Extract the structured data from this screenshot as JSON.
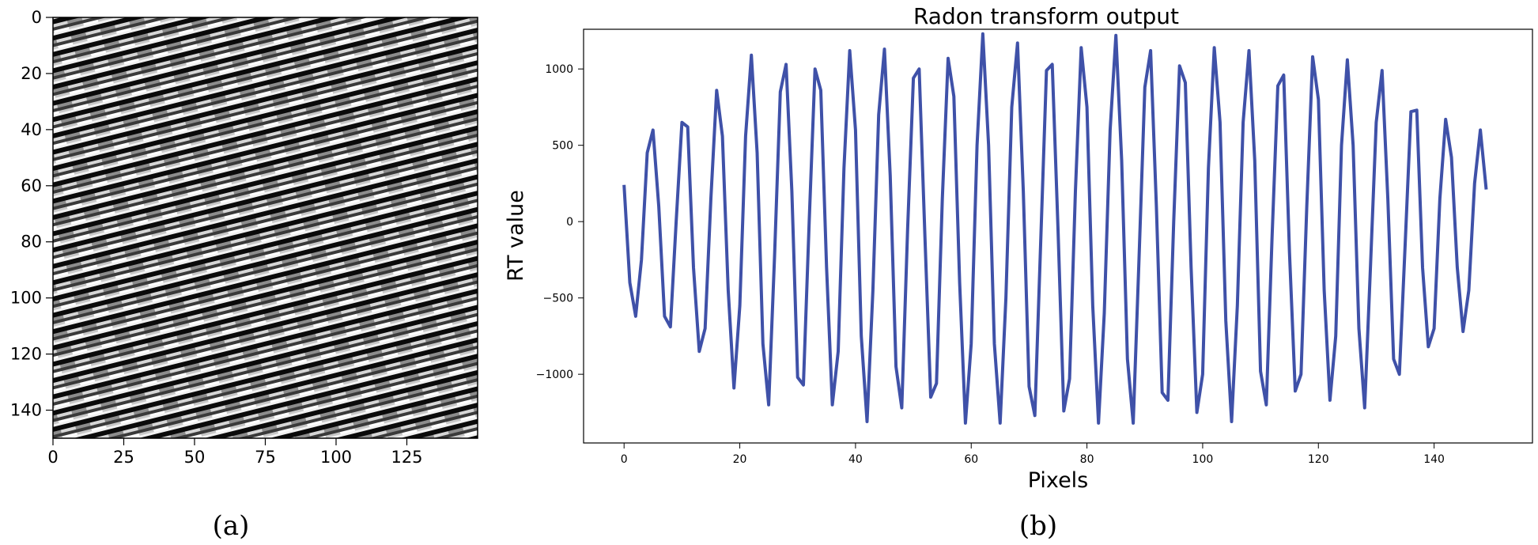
{
  "chart_data": [
    {
      "type": "heatmap",
      "panel_caption": "(a)",
      "image_size": [
        150,
        150
      ],
      "colormap": "gray",
      "pattern": "diagonal stripes",
      "xlim": [
        0,
        150
      ],
      "ylim": [
        150,
        0
      ],
      "x_ticks": [
        0,
        25,
        50,
        75,
        100,
        125
      ],
      "x_tick_labels": [
        "0",
        "25",
        "50",
        "75",
        "100",
        "125"
      ],
      "y_ticks": [
        0,
        20,
        40,
        60,
        80,
        100,
        120,
        140
      ],
      "y_tick_labels": [
        "0",
        "20",
        "40",
        "60",
        "80",
        "100",
        "120",
        "140"
      ]
    },
    {
      "type": "line",
      "panel_caption": "(b)",
      "title": "Radon transform output",
      "xlabel": "Pixels",
      "ylabel": "RT value",
      "xlim": [
        -7,
        157
      ],
      "ylim": [
        -1450,
        1260
      ],
      "x_ticks": [
        0,
        20,
        40,
        60,
        80,
        100,
        120,
        140
      ],
      "x_tick_labels": [
        "0",
        "20",
        "40",
        "60",
        "80",
        "100",
        "120",
        "140"
      ],
      "y_ticks": [
        -1000,
        -500,
        0,
        500,
        1000
      ],
      "y_tick_labels": [
        "−1000",
        "−500",
        "0",
        "500",
        "1000"
      ],
      "grid": false,
      "color": "#3f51a8",
      "series": [
        {
          "x": [
            0,
            1,
            2,
            3,
            4,
            5,
            6,
            7,
            8,
            9,
            10,
            11,
            12,
            13,
            14,
            15,
            16,
            17,
            18,
            19,
            20,
            21,
            22,
            23,
            24,
            25,
            26,
            27,
            28,
            29,
            30,
            31,
            32,
            33,
            34,
            35,
            36,
            37,
            38,
            39,
            40,
            41,
            42,
            43,
            44,
            45,
            46,
            47,
            48,
            49,
            50,
            51,
            52,
            53,
            54,
            55,
            56,
            57,
            58,
            59,
            60,
            61,
            62,
            63,
            64,
            65,
            66,
            67,
            68,
            69,
            70,
            71,
            72,
            73,
            74,
            75,
            76,
            77,
            78,
            79,
            80,
            81,
            82,
            83,
            84,
            85,
            86,
            87,
            88,
            89,
            90,
            91,
            92,
            93,
            94,
            95,
            96,
            97,
            98,
            99,
            100,
            101,
            102,
            103,
            104,
            105,
            106,
            107,
            108,
            109,
            110,
            111,
            112,
            113,
            114,
            115,
            116,
            117,
            118,
            119,
            120,
            121,
            122,
            123,
            124,
            125,
            126,
            127,
            128,
            129,
            130,
            131,
            132,
            133,
            134,
            135,
            136,
            137,
            138,
            139,
            140,
            141,
            142,
            143,
            144,
            145,
            146,
            147,
            148,
            149
          ],
          "values": [
            240,
            -400,
            -620,
            -250,
            450,
            600,
            100,
            -620,
            -690,
            0,
            650,
            620,
            -300,
            -850,
            -700,
            150,
            860,
            560,
            -450,
            -1090,
            -550,
            560,
            1090,
            450,
            -800,
            -1200,
            -230,
            850,
            1030,
            200,
            -1020,
            -1070,
            10,
            1000,
            860,
            -300,
            -1200,
            -850,
            350,
            1120,
            600,
            -750,
            -1310,
            -450,
            700,
            1130,
            300,
            -950,
            -1220,
            -50,
            940,
            1000,
            -100,
            -1150,
            -1060,
            150,
            1070,
            820,
            -400,
            -1320,
            -800,
            500,
            1230,
            500,
            -800,
            -1320,
            -500,
            750,
            1170,
            200,
            -1080,
            -1270,
            -150,
            990,
            1030,
            -50,
            -1240,
            -1030,
            200,
            1140,
            750,
            -550,
            -1320,
            -600,
            600,
            1220,
            400,
            -900,
            -1320,
            -250,
            880,
            1120,
            100,
            -1120,
            -1170,
            0,
            1020,
            910,
            -300,
            -1250,
            -1000,
            350,
            1140,
            650,
            -650,
            -1310,
            -550,
            650,
            1120,
            400,
            -980,
            -1200,
            -100,
            890,
            960,
            -200,
            -1110,
            -1000,
            100,
            1080,
            800,
            -450,
            -1170,
            -750,
            500,
            1060,
            500,
            -700,
            -1220,
            -300,
            650,
            990,
            150,
            -900,
            -1000,
            -150,
            720,
            730,
            -300,
            -820,
            -700,
            150,
            670,
            420,
            -300,
            -720,
            -450,
            250,
            600,
            210
          ]
        }
      ]
    }
  ]
}
